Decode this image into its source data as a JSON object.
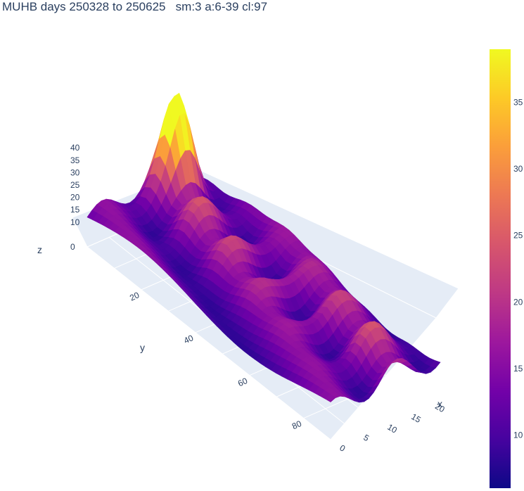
{
  "chart_data": {
    "type": "surface",
    "title": "MUHB days 250328 to 250625   sm:3 a:6-39 cl:97",
    "xlabel": "x",
    "ylabel": "y",
    "zlabel": "z",
    "x_ticks": [
      "0",
      "5",
      "10",
      "15",
      "20"
    ],
    "y_ticks": [
      "20",
      "40",
      "60",
      "80"
    ],
    "z_ticks": [
      "0",
      "10",
      "15",
      "20",
      "25",
      "30",
      "35",
      "40"
    ],
    "colorbar_ticks": [
      "10",
      "15",
      "20",
      "25",
      "30",
      "35"
    ],
    "x_range": [
      0,
      23
    ],
    "y_range": [
      0,
      90
    ],
    "z_range": [
      0,
      40
    ],
    "colorbar_range": [
      6,
      39
    ],
    "colorscale": "plasma",
    "colors": [
      "#0d0887",
      "#46039f",
      "#7201a8",
      "#9c179e",
      "#bd3786",
      "#d8576b",
      "#ed7953",
      "#fb9f3a",
      "#fdca26",
      "#f0f921"
    ]
  }
}
